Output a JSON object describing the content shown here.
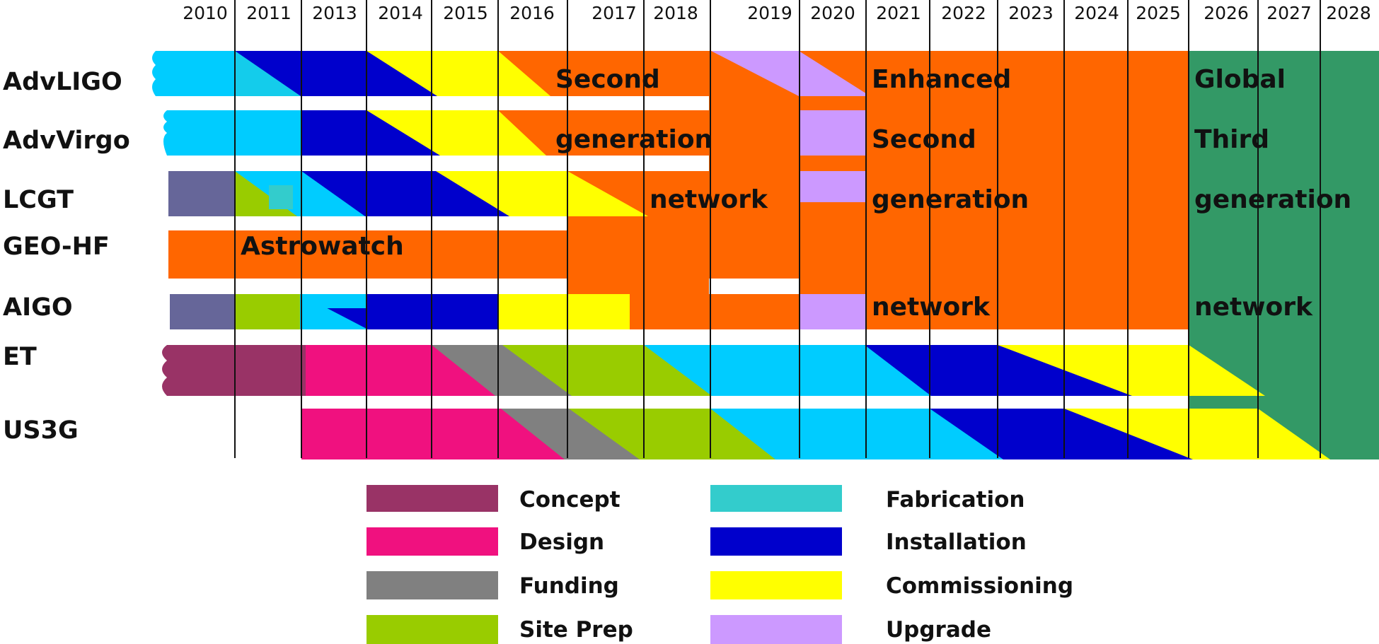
{
  "years": [
    "2010",
    "2011",
    "2013",
    "2014",
    "2015",
    "2016",
    "2017",
    "2018",
    "2019",
    "2020",
    "2021",
    "2022",
    "2023",
    "2024",
    "2025",
    "2026",
    "2027",
    "2028"
  ],
  "detectors": [
    "AdvLIGO",
    "AdvVirgo",
    "LCGT",
    "GEO-HF",
    "AIGO",
    "ET",
    "US3G"
  ],
  "overlay_labels": {
    "second_generation_network": [
      "Second",
      "generation",
      "network"
    ],
    "astrowatch": "Astrowatch",
    "enhanced_second_generation_network": [
      "Enhanced",
      "Second",
      "generation",
      "network"
    ],
    "global_third_generation_network": [
      "Global",
      "Third",
      "generation",
      "network"
    ]
  },
  "legend": [
    {
      "id": "concept",
      "label": "Concept",
      "color": "#993366"
    },
    {
      "id": "design",
      "label": "Design",
      "color": "#f0117f"
    },
    {
      "id": "funding",
      "label": "Funding",
      "color": "#808080"
    },
    {
      "id": "site-prep",
      "label": "Site Prep",
      "color": "#99cc00"
    },
    {
      "id": "fabrication",
      "label": "Fabrication",
      "color": "#33cccc"
    },
    {
      "id": "installation",
      "label": "Installation",
      "color": "#0000cc"
    },
    {
      "id": "commissioning",
      "label": "Commissioning",
      "color": "#ffff00"
    },
    {
      "id": "upgrade",
      "label": "Upgrade",
      "color": "#cc99ff"
    }
  ],
  "colors": {
    "second_gen_network": "#ff6600",
    "third_gen_network": "#339966",
    "fabrication_bar": "#00ccff",
    "early_concept": "#666699"
  }
}
